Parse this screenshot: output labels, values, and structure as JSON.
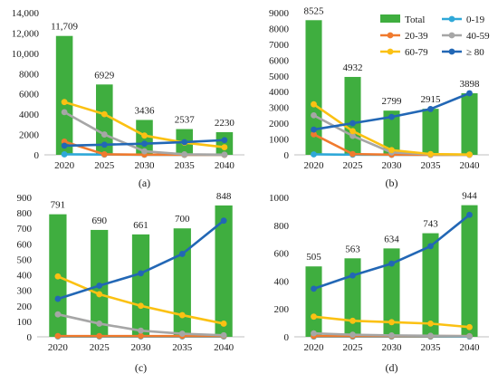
{
  "figure": {
    "colors": {
      "Total": "#3fae3f",
      "0-19": "#2fa8d8",
      "20-39": "#f07a2e",
      "40-59": "#a6a6a6",
      "60-79": "#fbc113",
      "≥ 80": "#2267b5"
    },
    "legend_labels": [
      "Total",
      "0-19",
      "20-39",
      "40-59",
      "60-79",
      "≥ 80"
    ]
  },
  "chart_data": [
    {
      "panel": "(a)",
      "type": "bar",
      "categories": [
        "2020",
        "2025",
        "2030",
        "2035",
        "2040"
      ],
      "ylim": [
        0,
        14000
      ],
      "yticks": [
        "0",
        "2000",
        "4000",
        "6000",
        "8000",
        "10,000",
        "12,000",
        "14,000"
      ],
      "bar_labels": [
        "11,709",
        "6929",
        "3436",
        "2537",
        "2230"
      ],
      "series": [
        {
          "name": "Total",
          "kind": "bar",
          "values": [
            11709,
            6929,
            3436,
            2537,
            2230
          ]
        },
        {
          "name": "0-19",
          "kind": "line",
          "values": [
            50,
            30,
            10,
            5,
            5
          ]
        },
        {
          "name": "20-39",
          "kind": "line",
          "values": [
            1300,
            50,
            20,
            10,
            5
          ]
        },
        {
          "name": "40-59",
          "kind": "line",
          "values": [
            4200,
            2000,
            350,
            50,
            20
          ]
        },
        {
          "name": "60-79",
          "kind": "line",
          "values": [
            5200,
            4000,
            1900,
            1200,
            750
          ]
        },
        {
          "name": "≥ 80",
          "kind": "line",
          "values": [
            900,
            1000,
            1100,
            1250,
            1450
          ]
        }
      ],
      "grid": false,
      "legend": "none"
    },
    {
      "panel": "(b)",
      "type": "bar",
      "categories": [
        "2020",
        "2025",
        "2030",
        "2035",
        "2040"
      ],
      "ylim": [
        0,
        9000
      ],
      "yticks": [
        "0",
        "1000",
        "2000",
        "3000",
        "4000",
        "5000",
        "6000",
        "7000",
        "8000",
        "9000"
      ],
      "bar_labels": [
        "8525",
        "4932",
        "2799",
        "2915",
        "3898"
      ],
      "series": [
        {
          "name": "Total",
          "kind": "bar",
          "values": [
            8525,
            4932,
            2799,
            2915,
            3898
          ]
        },
        {
          "name": "0-19",
          "kind": "line",
          "values": [
            30,
            10,
            5,
            5,
            5
          ]
        },
        {
          "name": "20-39",
          "kind": "line",
          "values": [
            1300,
            50,
            10,
            5,
            5
          ]
        },
        {
          "name": "40-59",
          "kind": "line",
          "values": [
            2500,
            1200,
            150,
            30,
            10
          ]
        },
        {
          "name": "60-79",
          "kind": "line",
          "values": [
            3200,
            1500,
            300,
            50,
            20
          ]
        },
        {
          "name": "≥ 80",
          "kind": "line",
          "values": [
            1600,
            2000,
            2400,
            2900,
            3900
          ]
        }
      ],
      "grid": false,
      "legend": "top-right"
    },
    {
      "panel": "(c)",
      "type": "bar",
      "categories": [
        "2020",
        "2025",
        "2030",
        "2035",
        "2040"
      ],
      "ylim": [
        0,
        900
      ],
      "yticks": [
        "0",
        "100",
        "200",
        "300",
        "400",
        "500",
        "600",
        "700",
        "800",
        "900"
      ],
      "bar_labels": [
        "791",
        "690",
        "661",
        "700",
        "848"
      ],
      "series": [
        {
          "name": "Total",
          "kind": "bar",
          "values": [
            791,
            690,
            661,
            700,
            848
          ]
        },
        {
          "name": "0-19",
          "kind": "line",
          "values": [
            2,
            2,
            2,
            2,
            2
          ]
        },
        {
          "name": "20-39",
          "kind": "line",
          "values": [
            5,
            5,
            5,
            5,
            5
          ]
        },
        {
          "name": "40-59",
          "kind": "line",
          "values": [
            145,
            85,
            40,
            20,
            10
          ]
        },
        {
          "name": "60-79",
          "kind": "line",
          "values": [
            390,
            275,
            200,
            140,
            85
          ]
        },
        {
          "name": "≥ 80",
          "kind": "line",
          "values": [
            245,
            330,
            410,
            535,
            750
          ]
        }
      ],
      "grid": false,
      "legend": "none"
    },
    {
      "panel": "(d)",
      "type": "bar",
      "categories": [
        "2020",
        "2025",
        "2030",
        "2035",
        "2040"
      ],
      "ylim": [
        0,
        1000
      ],
      "yticks": [
        "0",
        "200",
        "400",
        "600",
        "800",
        "1000"
      ],
      "bar_labels": [
        "505",
        "563",
        "634",
        "743",
        "944"
      ],
      "series": [
        {
          "name": "Total",
          "kind": "bar",
          "values": [
            505,
            563,
            634,
            743,
            944
          ]
        },
        {
          "name": "0-19",
          "kind": "line",
          "values": [
            2,
            2,
            2,
            2,
            2
          ]
        },
        {
          "name": "20-39",
          "kind": "line",
          "values": [
            5,
            5,
            5,
            5,
            5
          ]
        },
        {
          "name": "40-59",
          "kind": "line",
          "values": [
            25,
            15,
            10,
            8,
            5
          ]
        },
        {
          "name": "60-79",
          "kind": "line",
          "values": [
            145,
            115,
            105,
            95,
            70
          ]
        },
        {
          "name": "≥ 80",
          "kind": "line",
          "values": [
            345,
            440,
            525,
            650,
            875
          ]
        }
      ],
      "grid": false,
      "legend": "none"
    }
  ]
}
